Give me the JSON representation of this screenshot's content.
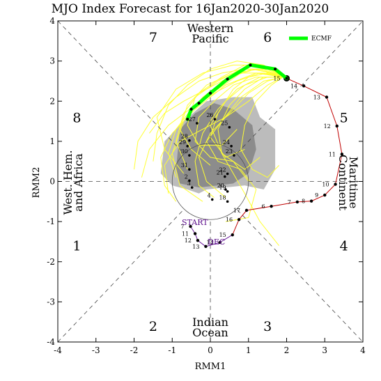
{
  "chart_data": {
    "type": "line",
    "title": "MJO Index Forecast for 16Jan2020-30Jan2020",
    "xlabel": "RMM1",
    "ylabel": "RMM2",
    "xlim": [
      -4,
      4
    ],
    "ylim": [
      -4,
      4
    ],
    "xticks": [
      -4,
      -3,
      -2,
      -1,
      0,
      1,
      2,
      3,
      4
    ],
    "yticks": [
      -4,
      -3,
      -2,
      -1,
      0,
      1,
      2,
      3,
      4
    ],
    "grid": false,
    "legend": {
      "position": "top-right",
      "entries": [
        "ECMF"
      ]
    },
    "phase_labels": [
      {
        "text": "1",
        "x": -3.5,
        "y": -1.6
      },
      {
        "text": "2",
        "x": -1.5,
        "y": -3.6
      },
      {
        "text": "3",
        "x": 1.5,
        "y": -3.6
      },
      {
        "text": "4",
        "x": 3.5,
        "y": -1.6
      },
      {
        "text": "5",
        "x": 3.5,
        "y": 1.6
      },
      {
        "text": "6",
        "x": 1.5,
        "y": 3.6
      },
      {
        "text": "7",
        "x": -1.5,
        "y": 3.6
      },
      {
        "text": "8",
        "x": -3.5,
        "y": 1.6
      }
    ],
    "regions": {
      "top": [
        "Western",
        "Pacific"
      ],
      "bottom": [
        "Indian",
        "Ocean"
      ],
      "left": [
        "West. Hem.",
        "and Africa"
      ],
      "right": [
        "Maritime",
        "Continent"
      ]
    },
    "observed": {
      "labels": {
        "start": "START",
        "month": "DEC"
      },
      "points": [
        {
          "day": "7",
          "x": -0.52,
          "y": -1.12
        },
        {
          "day": "11",
          "x": -0.4,
          "y": -1.3
        },
        {
          "day": "12",
          "x": -0.33,
          "y": -1.47
        },
        {
          "day": "13",
          "x": -0.12,
          "y": -1.62
        },
        {
          "day": "14",
          "x": 0.25,
          "y": -1.52
        },
        {
          "day": "15",
          "x": 0.58,
          "y": -1.33
        },
        {
          "day": "16",
          "x": 0.75,
          "y": -0.95
        },
        {
          "day": "17",
          "x": 0.95,
          "y": -0.72
        },
        {
          "day": "6",
          "x": 1.6,
          "y": -0.62
        },
        {
          "day": "7",
          "x": 2.28,
          "y": -0.51
        },
        {
          "day": "8",
          "x": 2.65,
          "y": -0.49
        },
        {
          "day": "9",
          "x": 3.0,
          "y": -0.34
        },
        {
          "day": "10",
          "x": 3.28,
          "y": -0.07
        },
        {
          "day": "11",
          "x": 3.45,
          "y": 0.68
        },
        {
          "day": "12",
          "x": 3.32,
          "y": 1.38
        },
        {
          "day": "13",
          "x": 3.05,
          "y": 2.1
        },
        {
          "day": "14",
          "x": 2.45,
          "y": 2.38
        },
        {
          "day": "15",
          "x": 2.0,
          "y": 2.57
        }
      ],
      "extra_labels": [
        {
          "text": "4",
          "x": 0.05,
          "y": -0.45
        },
        {
          "text": "18",
          "x": 0.45,
          "y": -0.5
        },
        {
          "text": "19",
          "x": 0.45,
          "y": -0.25
        },
        {
          "text": "20",
          "x": 0.4,
          "y": -0.2
        },
        {
          "text": "21",
          "x": 0.38,
          "y": 0.12
        },
        {
          "text": "22",
          "x": 0.45,
          "y": 0.19
        },
        {
          "text": "23",
          "x": 0.62,
          "y": 0.65
        },
        {
          "text": "24",
          "x": 0.55,
          "y": 0.88
        },
        {
          "text": "25",
          "x": 0.5,
          "y": 1.35
        },
        {
          "text": "26",
          "x": 0.12,
          "y": 1.55
        },
        {
          "text": "27",
          "x": -0.35,
          "y": 1.45
        },
        {
          "text": "28",
          "x": -0.55,
          "y": 1.02
        },
        {
          "text": "29",
          "x": -0.6,
          "y": 0.88
        },
        {
          "text": "30",
          "x": -0.55,
          "y": 0.65
        },
        {
          "text": "31",
          "x": -0.55,
          "y": 0.3
        },
        {
          "text": "2",
          "x": -0.55,
          "y": 0.02
        },
        {
          "text": "3",
          "x": -0.48,
          "y": -0.15
        }
      ]
    },
    "series": [
      {
        "name": "ECMF",
        "color": "#00ff00",
        "x": [
          2.0,
          1.7,
          1.05,
          0.45,
          0.0,
          -0.3,
          -0.5,
          -0.6
        ],
        "y": [
          2.57,
          2.8,
          2.9,
          2.55,
          2.2,
          1.95,
          1.8,
          1.55
        ]
      }
    ],
    "ensemble_color": "#ffff33",
    "shading_colors": [
      "#bcbcbc",
      "#8c8c8c"
    ]
  }
}
